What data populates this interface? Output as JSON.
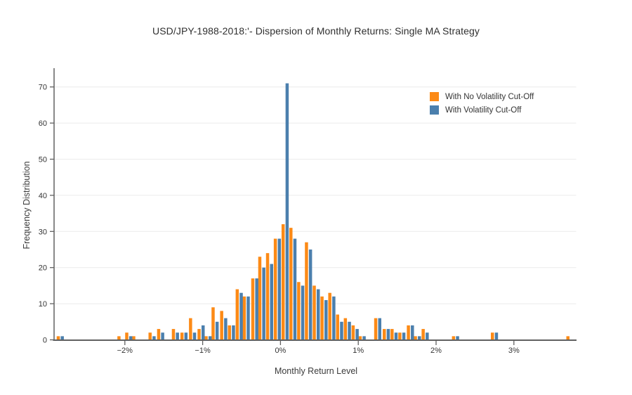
{
  "chart_data": {
    "type": "bar",
    "title": "USD/JPY-1988-2018:'- Dispersion of Monthly Returns: Single MA Strategy",
    "xlabel": "Monthly Return Level",
    "ylabel": "Frequency Distribution",
    "grid": "horizontal",
    "legend_position": "inside-top-right",
    "background": "#ffffff",
    "grid_color": "#ebebeb",
    "axis_color": "#606060",
    "tick_label_color": "#333333",
    "ylim": [
      0,
      75
    ],
    "xlim_percent": [
      -2.95,
      3.85
    ],
    "yticks": [
      0,
      10,
      20,
      30,
      40,
      50,
      60,
      70
    ],
    "xticks": [
      {
        "v": -2,
        "label": "−2%"
      },
      {
        "v": -1,
        "label": "−1%"
      },
      {
        "v": 0,
        "label": "0%"
      },
      {
        "v": 1,
        "label": "1%"
      },
      {
        "v": 2,
        "label": "2%"
      },
      {
        "v": 3,
        "label": "3%"
      }
    ],
    "x_percent": [
      -2.83,
      -2.05,
      -1.95,
      -1.86,
      -1.65,
      -1.54,
      -1.35,
      -1.24,
      -1.13,
      -1.02,
      -0.93,
      -0.84,
      -0.73,
      -0.63,
      -0.53,
      -0.44,
      -0.33,
      -0.24,
      -0.14,
      -0.04,
      0.06,
      0.16,
      0.26,
      0.36,
      0.46,
      0.56,
      0.66,
      0.76,
      0.86,
      0.96,
      1.05,
      1.25,
      1.36,
      1.46,
      1.56,
      1.67,
      1.76,
      1.86,
      2.25,
      2.75,
      3.72
    ],
    "series": [
      {
        "name": "With No Volatility Cut-Off",
        "color": "#fc8a16",
        "values": [
          1,
          1,
          2,
          1,
          2,
          3,
          3,
          2,
          6,
          3,
          1,
          9,
          8,
          4,
          14,
          12,
          17,
          23,
          24,
          28,
          32,
          31,
          16,
          27,
          15,
          12,
          13,
          7,
          6,
          4,
          1,
          6,
          3,
          3,
          2,
          4,
          1,
          3,
          1,
          2,
          1
        ]
      },
      {
        "name": "With Volatility Cut-Off",
        "color": "#4b7fad",
        "values": [
          1,
          0,
          1,
          0,
          1,
          2,
          2,
          2,
          2,
          4,
          1,
          5,
          6,
          4,
          13,
          12,
          17,
          20,
          21,
          28,
          71,
          28,
          15,
          25,
          14,
          11,
          12,
          5,
          5,
          3,
          1,
          6,
          3,
          2,
          2,
          4,
          1,
          2,
          1,
          2,
          0
        ]
      }
    ]
  }
}
